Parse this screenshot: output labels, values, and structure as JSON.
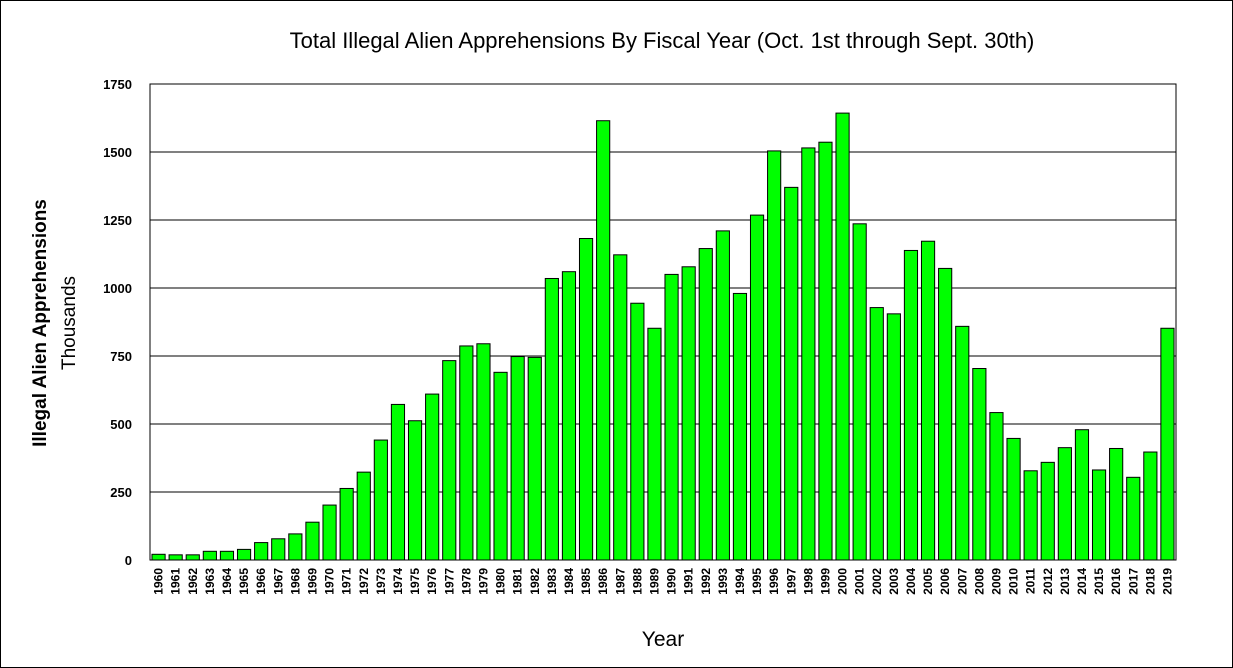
{
  "chart_data": {
    "type": "bar",
    "title": "Total Illegal Alien Apprehensions By Fiscal Year (Oct. 1st through Sept. 30th)",
    "xlabel": "Year",
    "ylabel": "Illegal Alien Apprehensions",
    "ylabel_unit": "Thousands",
    "ylim": [
      0,
      1750
    ],
    "yticks": [
      0,
      250,
      500,
      750,
      1000,
      1250,
      1500,
      1750
    ],
    "grid": true,
    "bar_color": "#00ff00",
    "categories": [
      "1960",
      "1961",
      "1962",
      "1963",
      "1964",
      "1965",
      "1966",
      "1967",
      "1968",
      "1969",
      "1970",
      "1971",
      "1972",
      "1973",
      "1974",
      "1975",
      "1976",
      "1977",
      "1978",
      "1979",
      "1980",
      "1981",
      "1982",
      "1983",
      "1984",
      "1985",
      "1986",
      "1987",
      "1988",
      "1989",
      "1990",
      "1991",
      "1992",
      "1993",
      "1994",
      "1995",
      "1996",
      "1997",
      "1998",
      "1999",
      "2000",
      "2001",
      "2002",
      "2003",
      "2004",
      "2005",
      "2006",
      "2007",
      "2008",
      "2009",
      "2010",
      "2011",
      "2012",
      "2013",
      "2014",
      "2015",
      "2016",
      "2017",
      "2018",
      "2019"
    ],
    "values": [
      21,
      19,
      19,
      32,
      32,
      39,
      64,
      78,
      96,
      139,
      202,
      263,
      323,
      441,
      572,
      512,
      610,
      733,
      787,
      795,
      690,
      748,
      745,
      1035,
      1060,
      1182,
      1615,
      1122,
      944,
      852,
      1050,
      1078,
      1145,
      1210,
      980,
      1268,
      1504,
      1370,
      1515,
      1536,
      1643,
      1236,
      928,
      905,
      1138,
      1172,
      1072,
      859,
      704,
      542,
      447,
      328,
      359,
      413,
      479,
      331,
      410,
      304,
      397,
      852
    ]
  }
}
